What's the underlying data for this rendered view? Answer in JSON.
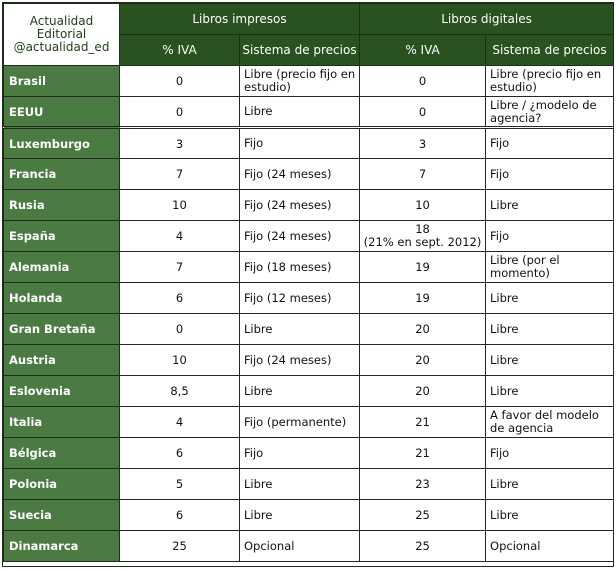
{
  "brand": {
    "line1": "Actualidad Editorial",
    "line2": "@actualidad_ed"
  },
  "groups": {
    "printed": "Libros impresos",
    "digital": "Libros digitales"
  },
  "subheaders": {
    "iva": "% IVA",
    "pricing": "Sistema de precios"
  },
  "rows": [
    {
      "country": "Brasil",
      "print_iva": "0",
      "print_system": "Libre (precio fijo en estudio)",
      "digital_iva": "0",
      "digital_iva_note": "",
      "digital_system": "Libre (precio fijo en estudio)"
    },
    {
      "country": "EEUU",
      "print_iva": "0",
      "print_system": "Libre",
      "digital_iva": "0",
      "digital_iva_note": "",
      "digital_system": "Libre / ¿modelo de agencia?"
    },
    {
      "country": "Luxemburgo",
      "print_iva": "3",
      "print_system": "Fijo",
      "digital_iva": "3",
      "digital_iva_note": "",
      "digital_system": "Fijo"
    },
    {
      "country": "Francia",
      "print_iva": "7",
      "print_system": "Fijo (24 meses)",
      "digital_iva": "7",
      "digital_iva_note": "",
      "digital_system": "Fijo"
    },
    {
      "country": "Rusia",
      "print_iva": "10",
      "print_system": "Fijo (24 meses)",
      "digital_iva": "10",
      "digital_iva_note": "",
      "digital_system": "Libre"
    },
    {
      "country": "España",
      "print_iva": "4",
      "print_system": "Fijo (24 meses)",
      "digital_iva": "18",
      "digital_iva_note": "(21% en sept. 2012)",
      "digital_system": "Fijo"
    },
    {
      "country": "Alemania",
      "print_iva": "7",
      "print_system": "Fijo (18 meses)",
      "digital_iva": "19",
      "digital_iva_note": "",
      "digital_system": "Libre (por el momento)"
    },
    {
      "country": "Holanda",
      "print_iva": "6",
      "print_system": "Fijo (12 meses)",
      "digital_iva": "19",
      "digital_iva_note": "",
      "digital_system": "Libre"
    },
    {
      "country": "Gran Bretaña",
      "print_iva": "0",
      "print_system": "Libre",
      "digital_iva": "20",
      "digital_iva_note": "",
      "digital_system": "Libre"
    },
    {
      "country": "Austria",
      "print_iva": "10",
      "print_system": "Fijo (24 meses)",
      "digital_iva": "20",
      "digital_iva_note": "",
      "digital_system": "Libre"
    },
    {
      "country": "Eslovenia",
      "print_iva": "8,5",
      "print_system": "Libre",
      "digital_iva": "20",
      "digital_iva_note": "",
      "digital_system": "Libre"
    },
    {
      "country": "Italia",
      "print_iva": "4",
      "print_system": "Fijo (permanente)",
      "digital_iva": "21",
      "digital_iva_note": "",
      "digital_system": "A favor del modelo de agencia"
    },
    {
      "country": "Bélgica",
      "print_iva": "6",
      "print_system": "Fijo",
      "digital_iva": "21",
      "digital_iva_note": "",
      "digital_system": "Fijo"
    },
    {
      "country": "Polonia",
      "print_iva": "5",
      "print_system": "Libre",
      "digital_iva": "23",
      "digital_iva_note": "",
      "digital_system": "Libre"
    },
    {
      "country": "Suecia",
      "print_iva": "6",
      "print_system": "Libre",
      "digital_iva": "25",
      "digital_iva_note": "",
      "digital_system": "Libre"
    },
    {
      "country": "Dinamarca",
      "print_iva": "25",
      "print_system": "Opcional",
      "digital_iva": "25",
      "digital_iva_note": "",
      "digital_system": "Opcional"
    }
  ],
  "separator_after_row": 1
}
